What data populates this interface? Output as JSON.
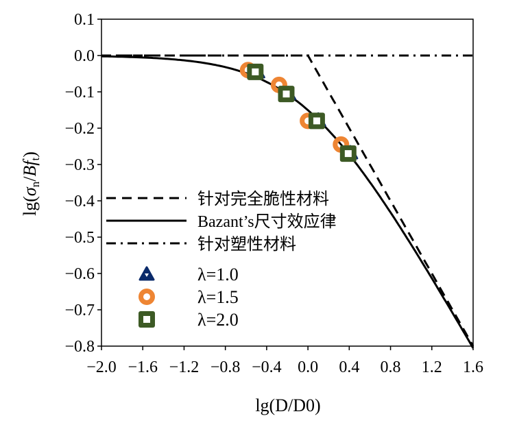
{
  "chart_data": {
    "type": "scatter",
    "xlabel": "lg(D/D0)",
    "ylabel": "lg(σn/Bft)",
    "xlim": [
      -2.0,
      1.6
    ],
    "ylim": [
      -0.8,
      0.1
    ],
    "xticks": [
      "−2.0",
      "−1.6",
      "−1.2",
      "−0.8",
      "−0.4",
      "0.0",
      "0.4",
      "0.8",
      "1.2",
      "1.6"
    ],
    "xtick_values": [
      -2.0,
      -1.6,
      -1.2,
      -0.8,
      -0.4,
      0.0,
      0.4,
      0.8,
      1.2,
      1.6
    ],
    "yticks": [
      "0.1",
      "0.0",
      "−0.1",
      "−0.2",
      "−0.3",
      "−0.4",
      "−0.5",
      "−0.6",
      "−0.7",
      "−0.8"
    ],
    "ytick_values": [
      0.1,
      0.0,
      -0.1,
      -0.2,
      -0.3,
      -0.4,
      -0.5,
      -0.6,
      -0.7,
      -0.8
    ],
    "grid": false,
    "legend_position": "lower-left",
    "lines": [
      {
        "name": "针对完全脆性材料",
        "style": "dashed",
        "formula": "y = min(0, -0.5x)"
      },
      {
        "name": "Bazant’s尺寸效应律",
        "style": "solid",
        "formula": "y = -0.5 lg(1 + 10^x)"
      },
      {
        "name": "针对塑性材料",
        "style": "dash-dot",
        "formula": "y = 0"
      }
    ],
    "series": [
      {
        "name": "λ=1.0",
        "marker": "triangle",
        "color": "#0a2a6a",
        "x": [
          -0.49,
          -0.19,
          0.1,
          0.41
        ],
        "y": [
          -0.045,
          -0.105,
          -0.178,
          -0.268
        ]
      },
      {
        "name": "λ=1.5",
        "marker": "circle",
        "color": "#ee8533",
        "x": [
          -0.58,
          -0.28,
          0.0,
          0.32
        ],
        "y": [
          -0.04,
          -0.081,
          -0.18,
          -0.245
        ]
      },
      {
        "name": "λ=2.0",
        "marker": "square",
        "color": "#3d5a25",
        "x": [
          -0.51,
          -0.21,
          0.085,
          0.39
        ],
        "y": [
          -0.045,
          -0.106,
          -0.18,
          -0.27
        ]
      }
    ]
  }
}
